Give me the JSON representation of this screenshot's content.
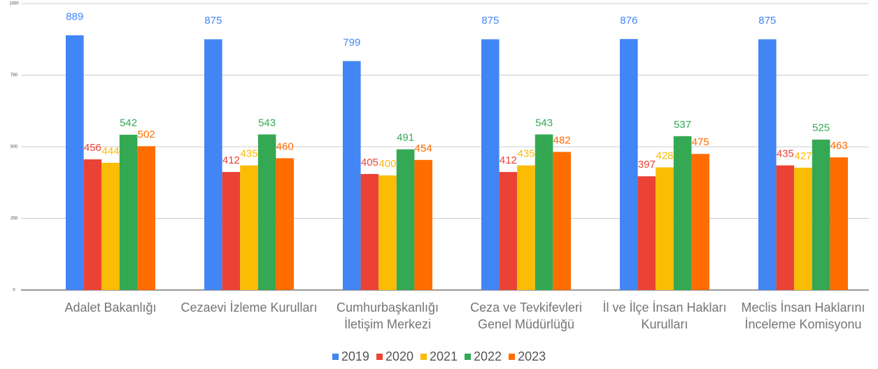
{
  "chart_data": {
    "type": "bar",
    "categories": [
      "Adalet Bakanlığı",
      "Cezaevi İzleme Kurulları",
      "Cumhurbaşkanlığı İletişim Merkezi",
      "Ceza ve Tevkifevleri Genel Müdürlüğü",
      "İl ve İlçe İnsan Hakları Kurulları",
      "Meclis İnsan Haklarını İnceleme Komisyonu"
    ],
    "series": [
      {
        "name": "2019",
        "color": "#4285f4",
        "values": [
          889,
          875,
          799,
          875,
          876,
          875
        ]
      },
      {
        "name": "2020",
        "color": "#ea4335",
        "values": [
          456,
          412,
          405,
          412,
          397,
          435
        ]
      },
      {
        "name": "2021",
        "color": "#fbbc04",
        "values": [
          444,
          435,
          400,
          435,
          428,
          427
        ]
      },
      {
        "name": "2022",
        "color": "#34a853",
        "values": [
          542,
          543,
          491,
          543,
          537,
          525
        ]
      },
      {
        "name": "2023",
        "color": "#ff6d01",
        "values": [
          502,
          460,
          454,
          482,
          475,
          463
        ]
      }
    ],
    "ylim": [
      0,
      1000
    ],
    "yticks": [
      0,
      250,
      500,
      750,
      1000
    ],
    "grid": true,
    "legend": "bottom"
  }
}
